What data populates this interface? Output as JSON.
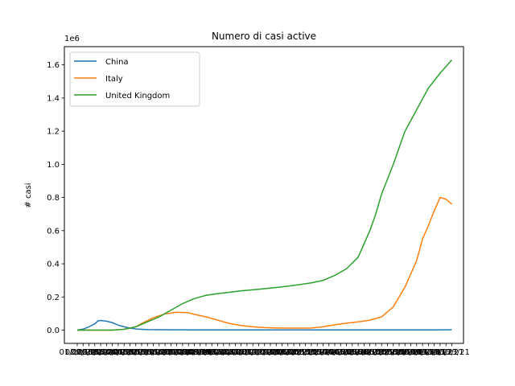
{
  "chart_data": {
    "type": "line",
    "title": "Numero di casi active",
    "xlabel": "",
    "ylabel": "# casi",
    "y_offset_text": "1e6",
    "ylim": [
      -0.08,
      1.71
    ],
    "yticks": [
      0.0,
      0.2,
      0.4,
      0.6,
      0.8,
      1.0,
      1.2,
      1.4,
      1.6
    ],
    "ytick_labels": [
      "0.0",
      "0.2",
      "0.4",
      "0.6",
      "0.8",
      "1.0",
      "1.2",
      "1.4",
      "1.6"
    ],
    "xlim": [
      -22,
      660
    ],
    "xticks": [
      0,
      10,
      20,
      30,
      40,
      50,
      60,
      70,
      80,
      90,
      100,
      110,
      120,
      130,
      140,
      150,
      160,
      170,
      180,
      190,
      200,
      210,
      220,
      230,
      240,
      250,
      260,
      270,
      280,
      290,
      300,
      310,
      320,
      330,
      340,
      350,
      360,
      370,
      380,
      390,
      400,
      410,
      420,
      430,
      440,
      450,
      460,
      470,
      480,
      490,
      500,
      510,
      520,
      530,
      540,
      550,
      560,
      570,
      580,
      590,
      600,
      610,
      620,
      630,
      640
    ],
    "xtick_labels": [
      "01/22/20",
      "02/01/20",
      "02/11/20",
      "02/21/20",
      "03/02/20",
      "03/12/20",
      "03/22/20",
      "04/01/20",
      "04/11/20",
      "04/21/20",
      "05/01/20",
      "05/11/20",
      "05/21/20",
      "05/31/20",
      "06/10/20",
      "06/20/20",
      "06/30/20",
      "07/10/20",
      "07/20/20",
      "07/30/20",
      "08/09/20",
      "08/19/20",
      "08/29/20",
      "09/08/20",
      "09/18/20",
      "09/28/20",
      "10/08/20",
      "10/18/20",
      "10/28/20",
      "11/07/20",
      "11/17/20",
      "11/27/20",
      "12/07/20",
      "12/17/20",
      "12/27/20",
      "01/06/21",
      "01/16/21",
      "01/26/21",
      "02/05/21",
      "02/15/21",
      "02/25/21",
      "03/07/21",
      "03/17/21",
      "03/27/21",
      "04/06/21",
      "04/16/21",
      "04/26/21",
      "05/06/21",
      "05/16/21",
      "05/26/21",
      "06/05/21",
      "06/15/21",
      "06/25/21",
      "07/05/21",
      "07/15/21",
      "07/25/21",
      "08/04/21",
      "08/14/21",
      "08/24/21",
      "09/03/21",
      "09/13/21",
      "09/23/21",
      "10/03/21",
      "10/13/21",
      "10/23/21"
    ],
    "grid": false,
    "legend_position": "top-left",
    "series": [
      {
        "name": "China",
        "color": "#1f77b4",
        "x": [
          0,
          10,
          20,
          30,
          35,
          40,
          50,
          60,
          70,
          80,
          90,
          100,
          120,
          160,
          220,
          300,
          400,
          500,
          600,
          640
        ],
        "y": [
          0.0,
          0.006,
          0.02,
          0.038,
          0.055,
          0.058,
          0.054,
          0.045,
          0.03,
          0.02,
          0.012,
          0.007,
          0.003,
          0.002,
          0.001,
          0.001,
          0.001,
          0.001,
          0.001,
          0.002
        ]
      },
      {
        "name": "Italy",
        "color": "#ff7f0e",
        "x": [
          0,
          40,
          60,
          80,
          100,
          110,
          130,
          150,
          170,
          190,
          200,
          220,
          240,
          260,
          280,
          300,
          320,
          340,
          360,
          380,
          390,
          400,
          420,
          440,
          460,
          480,
          500,
          520,
          540,
          560,
          580,
          590,
          600,
          610,
          620,
          630,
          640
        ],
        "y": [
          0.0,
          0.0,
          0.0,
          0.005,
          0.02,
          0.04,
          0.075,
          0.098,
          0.108,
          0.105,
          0.095,
          0.08,
          0.06,
          0.04,
          0.028,
          0.02,
          0.015,
          0.013,
          0.012,
          0.012,
          0.012,
          0.013,
          0.02,
          0.032,
          0.042,
          0.05,
          0.06,
          0.08,
          0.14,
          0.26,
          0.42,
          0.55,
          0.63,
          0.72,
          0.8,
          0.79,
          0.76
        ]
      },
      {
        "name": "United Kingdom",
        "color": "#2ca02c",
        "x": [
          0,
          60,
          80,
          100,
          120,
          140,
          160,
          180,
          200,
          220,
          240,
          260,
          280,
          300,
          320,
          340,
          360,
          380,
          400,
          420,
          440,
          460,
          480,
          500,
          510,
          520,
          540,
          560,
          580,
          600,
          620,
          640
        ],
        "y": [
          0.0,
          0.0,
          0.005,
          0.02,
          0.05,
          0.08,
          0.12,
          0.16,
          0.19,
          0.21,
          0.22,
          0.228,
          0.237,
          0.243,
          0.25,
          0.257,
          0.265,
          0.275,
          0.285,
          0.3,
          0.33,
          0.37,
          0.44,
          0.6,
          0.7,
          0.82,
          1.0,
          1.2,
          1.33,
          1.46,
          1.55,
          1.63
        ]
      }
    ]
  }
}
